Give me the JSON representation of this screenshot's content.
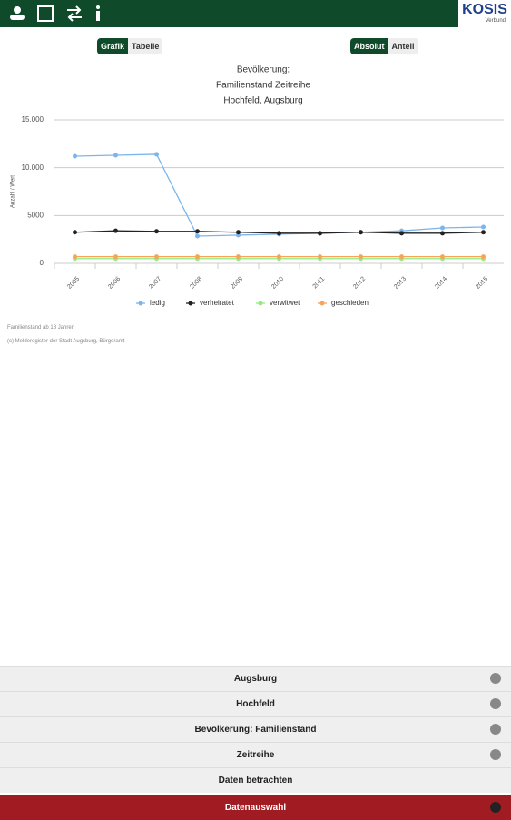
{
  "header": {
    "logo": "KOSIS",
    "logo_sub": "Verbund"
  },
  "toggles": {
    "view": [
      "Grafik",
      "Tabelle"
    ],
    "mode": [
      "Absolut",
      "Anteil"
    ]
  },
  "chart_data": {
    "type": "line",
    "title": [
      "Bevölkerung:",
      "Familienstand Zeitreihe",
      "Hochfeld, Augsburg"
    ],
    "y_label": "Anzahl / Wert",
    "categories": [
      "2005",
      "2006",
      "2007",
      "2008",
      "2009",
      "2010",
      "2011",
      "2012",
      "2013",
      "2014",
      "2015"
    ],
    "series": [
      {
        "name": "ledig",
        "color": "#7cb5ec",
        "values": [
          11200,
          11300,
          11400,
          2850,
          2950,
          3050,
          3150,
          3250,
          3400,
          3700,
          3800
        ]
      },
      {
        "name": "verheiratet",
        "color": "#222222",
        "values": [
          3250,
          3400,
          3350,
          3350,
          3250,
          3150,
          3150,
          3250,
          3150,
          3150,
          3250
        ]
      },
      {
        "name": "verwitwet",
        "color": "#90ed7d",
        "values": [
          500,
          500,
          500,
          500,
          500,
          500,
          500,
          500,
          500,
          500,
          500
        ]
      },
      {
        "name": "geschieden",
        "color": "#f7a35c",
        "values": [
          700,
          700,
          700,
          700,
          700,
          700,
          700,
          700,
          700,
          700,
          700
        ]
      }
    ],
    "ylim": [
      0,
      15000
    ],
    "yticks": [
      0,
      5000,
      {
        "value": 10000,
        "label": "10.000"
      },
      {
        "value": 15000,
        "label": "15.000"
      }
    ],
    "grid": true
  },
  "footnotes": [
    "Familienstand ab 18 Jahren",
    "(c) Melderegister der Stadt Augsburg, Bürgeramt"
  ],
  "menu": [
    "Augsburg",
    "Hochfeld",
    "Bevölkerung: Familienstand",
    "Zeitreihe",
    "Daten betrachten"
  ],
  "menu_bottom": "Datenauswahl"
}
